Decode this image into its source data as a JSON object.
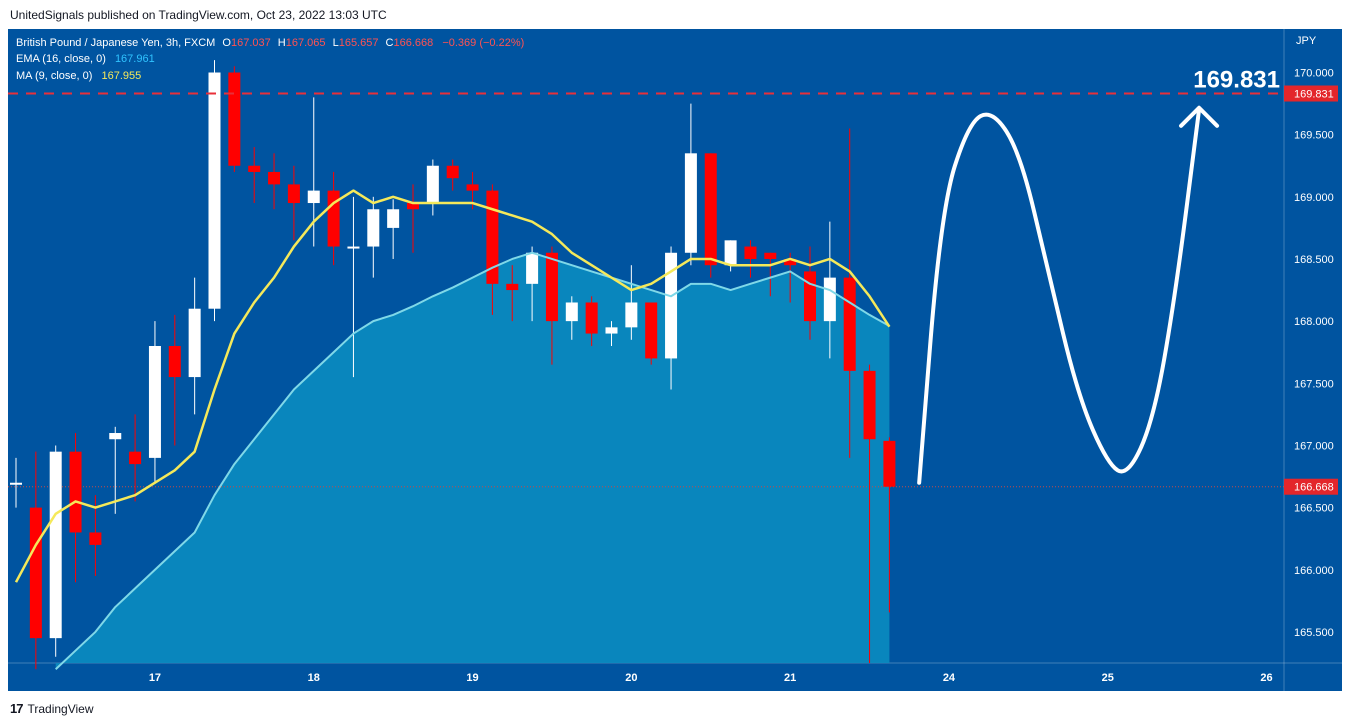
{
  "header": {
    "publisher": "UnitedSignals published on TradingView.com, Oct 23, 2022 13:03 UTC"
  },
  "footer": {
    "brand": "TradingView",
    "logo_glyph": "17"
  },
  "colors": {
    "background": "#0054A0",
    "axis_background": "#0054A0",
    "bull": "#FFFFFF",
    "bear": "#FF0000",
    "ema": "#2FC3FF",
    "ema_fill": "#0A8CC0",
    "ma": "#F5E95A",
    "target_line": "#E8303A",
    "current_line": "#C44A47",
    "projection": "#FFFFFF"
  },
  "chart_data": {
    "type": "candlestick",
    "symbol_line": {
      "name": "British Pound / Japanese Yen, 3h, FXCM",
      "O_label": "O",
      "O": "167.037",
      "H_label": "H",
      "H": "167.065",
      "L_label": "L",
      "L": "165.657",
      "C_label": "C",
      "C": "166.668",
      "change": "−0.369 (−0.22%)"
    },
    "indicators": [
      {
        "label": "EMA (16, close, 0)",
        "value": "167.961"
      },
      {
        "label": "MA (9, close, 0)",
        "value": "167.955"
      }
    ],
    "currency": "JPY",
    "ylim": [
      165.25,
      170.35
    ],
    "y_ticks": [
      "170.000",
      "169.500",
      "169.000",
      "168.500",
      "168.000",
      "167.500",
      "167.000",
      "166.500",
      "166.000",
      "165.500"
    ],
    "x_ticks": [
      {
        "label": "17",
        "x": 7
      },
      {
        "label": "18",
        "x": 15
      },
      {
        "label": "19",
        "x": 23
      },
      {
        "label": "20",
        "x": 31
      },
      {
        "label": "21",
        "x": 39
      },
      {
        "label": "24",
        "x": 47
      },
      {
        "label": "25",
        "x": 55
      },
      {
        "label": "26",
        "x": 63
      }
    ],
    "candles": [
      {
        "o": 166.7,
        "h": 166.9,
        "l": 166.5,
        "c": 166.7
      },
      {
        "o": 166.5,
        "h": 166.95,
        "l": 165.2,
        "c": 165.45
      },
      {
        "o": 165.45,
        "h": 167.0,
        "l": 165.3,
        "c": 166.95
      },
      {
        "o": 166.95,
        "h": 167.1,
        "l": 165.9,
        "c": 166.3
      },
      {
        "o": 166.3,
        "h": 166.6,
        "l": 165.95,
        "c": 166.2
      },
      {
        "o": 167.05,
        "h": 167.15,
        "l": 166.45,
        "c": 167.1
      },
      {
        "o": 166.95,
        "h": 167.25,
        "l": 166.55,
        "c": 166.85
      },
      {
        "o": 166.9,
        "h": 168.0,
        "l": 166.7,
        "c": 167.8
      },
      {
        "o": 167.8,
        "h": 168.05,
        "l": 167.0,
        "c": 167.55
      },
      {
        "o": 167.55,
        "h": 168.35,
        "l": 167.25,
        "c": 168.1
      },
      {
        "o": 168.1,
        "h": 170.1,
        "l": 168.0,
        "c": 170.0
      },
      {
        "o": 170.0,
        "h": 170.05,
        "l": 169.2,
        "c": 169.25
      },
      {
        "o": 169.25,
        "h": 169.4,
        "l": 168.95,
        "c": 169.2
      },
      {
        "o": 169.2,
        "h": 169.35,
        "l": 168.9,
        "c": 169.1
      },
      {
        "o": 169.1,
        "h": 169.25,
        "l": 168.65,
        "c": 168.95
      },
      {
        "o": 168.95,
        "h": 169.8,
        "l": 168.6,
        "c": 169.05
      },
      {
        "o": 169.05,
        "h": 169.2,
        "l": 168.45,
        "c": 168.6
      },
      {
        "o": 168.6,
        "h": 169.0,
        "l": 167.55,
        "c": 168.6
      },
      {
        "o": 168.6,
        "h": 169.0,
        "l": 168.35,
        "c": 168.9
      },
      {
        "o": 168.75,
        "h": 168.98,
        "l": 168.5,
        "c": 168.9
      },
      {
        "o": 168.95,
        "h": 169.1,
        "l": 168.55,
        "c": 168.9
      },
      {
        "o": 168.95,
        "h": 169.3,
        "l": 168.85,
        "c": 169.25
      },
      {
        "o": 169.25,
        "h": 169.3,
        "l": 169.05,
        "c": 169.15
      },
      {
        "o": 169.1,
        "h": 169.2,
        "l": 168.9,
        "c": 169.05
      },
      {
        "o": 169.05,
        "h": 169.1,
        "l": 168.05,
        "c": 168.3
      },
      {
        "o": 168.3,
        "h": 168.45,
        "l": 168.0,
        "c": 168.25
      },
      {
        "o": 168.3,
        "h": 168.6,
        "l": 168.0,
        "c": 168.55
      },
      {
        "o": 168.55,
        "h": 168.6,
        "l": 167.65,
        "c": 168.0
      },
      {
        "o": 168.0,
        "h": 168.2,
        "l": 167.85,
        "c": 168.15
      },
      {
        "o": 168.15,
        "h": 168.2,
        "l": 167.8,
        "c": 167.9
      },
      {
        "o": 167.9,
        "h": 168.0,
        "l": 167.8,
        "c": 167.95
      },
      {
        "o": 167.95,
        "h": 168.45,
        "l": 167.85,
        "c": 168.15
      },
      {
        "o": 168.15,
        "h": 168.15,
        "l": 167.65,
        "c": 167.7
      },
      {
        "o": 167.7,
        "h": 168.6,
        "l": 167.45,
        "c": 168.55
      },
      {
        "o": 168.55,
        "h": 169.75,
        "l": 168.45,
        "c": 169.35
      },
      {
        "o": 169.35,
        "h": 169.35,
        "l": 168.35,
        "c": 168.45
      },
      {
        "o": 168.45,
        "h": 168.65,
        "l": 168.4,
        "c": 168.65
      },
      {
        "o": 168.6,
        "h": 168.65,
        "l": 168.35,
        "c": 168.5
      },
      {
        "o": 168.55,
        "h": 168.55,
        "l": 168.2,
        "c": 168.5
      },
      {
        "o": 168.5,
        "h": 168.55,
        "l": 168.15,
        "c": 168.45
      },
      {
        "o": 168.4,
        "h": 168.6,
        "l": 167.85,
        "c": 168.0
      },
      {
        "o": 168.0,
        "h": 168.8,
        "l": 167.7,
        "c": 168.35
      },
      {
        "o": 168.35,
        "h": 169.55,
        "l": 166.9,
        "c": 167.6
      },
      {
        "o": 167.6,
        "h": 167.65,
        "l": 165.25,
        "c": 167.05
      },
      {
        "o": 167.037,
        "h": 167.065,
        "l": 165.657,
        "c": 166.668
      }
    ],
    "ma": [
      165.9,
      166.2,
      166.45,
      166.55,
      166.5,
      166.55,
      166.6,
      166.7,
      166.8,
      166.95,
      167.45,
      167.9,
      168.15,
      168.35,
      168.6,
      168.8,
      168.95,
      169.05,
      168.95,
      169.0,
      168.95,
      168.95,
      168.95,
      168.95,
      168.9,
      168.85,
      168.8,
      168.7,
      168.55,
      168.45,
      168.35,
      168.25,
      168.3,
      168.4,
      168.5,
      168.5,
      168.45,
      168.45,
      168.45,
      168.5,
      168.45,
      168.5,
      168.4,
      168.2,
      167.955
    ],
    "ema": [
      null,
      null,
      165.2,
      165.35,
      165.5,
      165.7,
      165.85,
      166.0,
      166.15,
      166.3,
      166.6,
      166.85,
      167.05,
      167.25,
      167.45,
      167.6,
      167.75,
      167.9,
      168.0,
      168.05,
      168.12,
      168.2,
      168.27,
      168.35,
      168.43,
      168.5,
      168.55,
      168.5,
      168.45,
      168.4,
      168.35,
      168.3,
      168.25,
      168.2,
      168.3,
      168.3,
      168.25,
      168.3,
      168.35,
      168.4,
      168.3,
      168.25,
      168.15,
      168.05,
      167.961
    ],
    "ema_fill_from_index": 2,
    "target": {
      "price": 169.831,
      "label": "169.831",
      "big_label": "169.831"
    },
    "current": {
      "price": 166.668,
      "label": "166.668"
    },
    "projection": [
      [
        45.5,
        166.7
      ],
      [
        46.6,
        168.9
      ],
      [
        48.0,
        169.6
      ],
      [
        49.2,
        169.7
      ],
      [
        50.6,
        169.35
      ],
      [
        52.0,
        168.4
      ],
      [
        53.5,
        167.4
      ],
      [
        55.0,
        166.85
      ],
      [
        56.0,
        166.75
      ],
      [
        57.3,
        167.2
      ],
      [
        58.4,
        168.2
      ],
      [
        59.6,
        169.7
      ]
    ],
    "grid": false,
    "legend": "top-left"
  }
}
